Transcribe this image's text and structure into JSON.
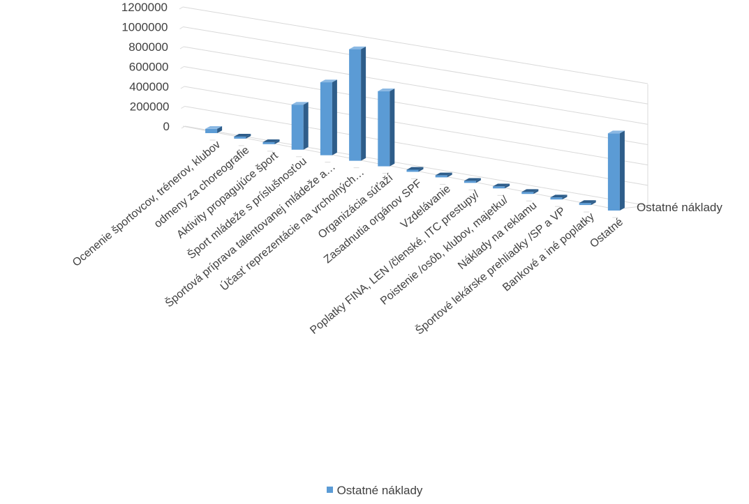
{
  "chart_data": {
    "type": "bar",
    "title": "",
    "xlabel": "",
    "ylabel": "",
    "ylim": [
      0,
      1200000
    ],
    "yticks": [
      "0",
      "200000",
      "400000",
      "600000",
      "800000",
      "1000000",
      "1200000"
    ],
    "ytick_values": [
      0,
      200000,
      400000,
      600000,
      800000,
      1000000,
      1200000
    ],
    "categories": [
      "Ocenenie športovcov, trénerov, klubov",
      "odmeny za choreografie",
      "Aktivity propagujúce šport",
      "Šport mládeže s príslušnosťou",
      "Športová príprava talentovanej mládeže a…",
      "Účasť reprezentácie na vrcholných…",
      "Organizácia súťaží",
      "Zasadnutia orgánov SPF",
      "Vzdelávanie",
      "Poplatky FINA, LEN /členské, ITC prestupy/",
      "Poistenie /osôb, klubov, majetku/",
      "Náklady na reklamu",
      "Športové lekárske prehliadky /SP a VP",
      "Bankové a iné poplatky",
      "Ostatné"
    ],
    "series": [
      {
        "name": "Ostatné náklady",
        "values": [
          40000,
          0,
          0,
          420000,
          680000,
          1040000,
          700000,
          0,
          0,
          0,
          0,
          0,
          0,
          0,
          720000
        ]
      }
    ],
    "grid": true,
    "legend_position": "bottom",
    "colors": {
      "bar_front": "#5b9bd5",
      "bar_top": "#8ab8e3",
      "bar_side": "#2e5d8a",
      "grid": "#d9d9d9"
    }
  }
}
